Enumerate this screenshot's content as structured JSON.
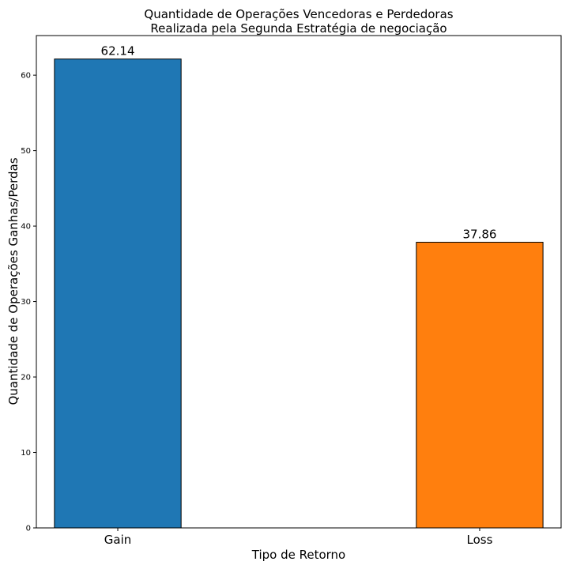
{
  "chart_data": {
    "type": "bar",
    "title": [
      "Quantidade de Operações Vencedoras e Perdedoras",
      "Realizada pela Segunda Estratégia de negociação"
    ],
    "xlabel": "Tipo de Retorno",
    "ylabel": "Quantidade de Operações Ganhas/Perdas",
    "categories": [
      "Gain",
      "Loss"
    ],
    "values": [
      62.14,
      37.86
    ],
    "data_labels": [
      "62.14",
      "37.86"
    ],
    "colors": [
      "#1f77b4",
      "#ff7f0e"
    ],
    "ylim": [
      0,
      65.25
    ],
    "yticks": [
      0,
      10,
      20,
      30,
      40,
      50,
      60
    ],
    "grid": false,
    "legend": "none"
  }
}
